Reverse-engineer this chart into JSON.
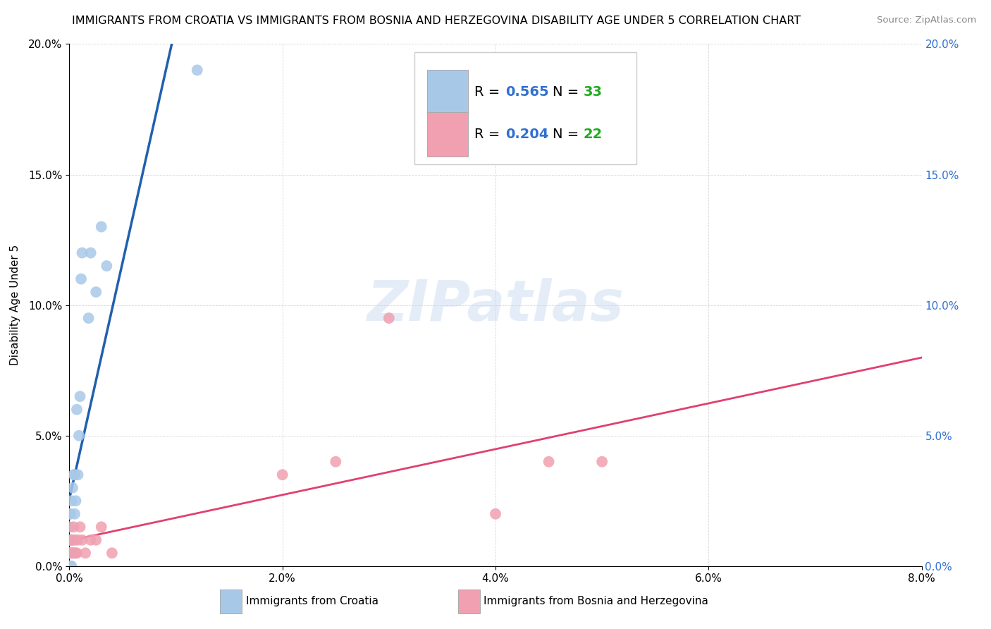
{
  "title": "IMMIGRANTS FROM CROATIA VS IMMIGRANTS FROM BOSNIA AND HERZEGOVINA DISABILITY AGE UNDER 5 CORRELATION CHART",
  "source": "Source: ZipAtlas.com",
  "ylabel": "Disability Age Under 5",
  "xlim": [
    0.0,
    0.08
  ],
  "ylim": [
    0.0,
    0.2
  ],
  "xticks": [
    0.0,
    0.02,
    0.04,
    0.06,
    0.08
  ],
  "yticks": [
    0.0,
    0.05,
    0.1,
    0.15,
    0.2
  ],
  "xticklabels": [
    "0.0%",
    "2.0%",
    "4.0%",
    "6.0%",
    "8.0%"
  ],
  "yticklabels_left": [
    "0.0%",
    "5.0%",
    "10.0%",
    "15.0%",
    "20.0%"
  ],
  "yticklabels_right": [
    "0.0%",
    "5.0%",
    "10.0%",
    "15.0%",
    "20.0%"
  ],
  "croatia_R": "0.565",
  "croatia_N": "33",
  "bosnia_R": "0.204",
  "bosnia_N": "22",
  "croatia_color": "#a8c8e8",
  "croatia_line_color": "#2060b0",
  "croatia_dash_color": "#6090c0",
  "bosnia_color": "#f0a0b0",
  "bosnia_line_color": "#e04070",
  "legend_R_color": "#3070d0",
  "legend_N_color": "#20aa20",
  "watermark_text": "ZIPatlas",
  "watermark_color": "#c5d8ee",
  "bottom_label1": "Immigrants from Croatia",
  "bottom_label2": "Immigrants from Bosnia and Herzegovina",
  "croatia_x": [
    0.0,
    0.0,
    0.0,
    0.0,
    0.0,
    0.0001,
    0.0001,
    0.0001,
    0.0001,
    0.0002,
    0.0002,
    0.0002,
    0.0002,
    0.0003,
    0.0003,
    0.0003,
    0.0004,
    0.0004,
    0.0005,
    0.0005,
    0.0006,
    0.0007,
    0.0008,
    0.0009,
    0.001,
    0.0011,
    0.0012,
    0.0018,
    0.002,
    0.0025,
    0.003,
    0.0035,
    0.012
  ],
  "croatia_y": [
    0.0,
    0.005,
    0.01,
    0.015,
    0.02,
    0.0,
    0.005,
    0.01,
    0.02,
    0.0,
    0.005,
    0.01,
    0.025,
    0.005,
    0.01,
    0.03,
    0.005,
    0.035,
    0.02,
    0.035,
    0.025,
    0.06,
    0.035,
    0.05,
    0.065,
    0.11,
    0.12,
    0.095,
    0.12,
    0.105,
    0.13,
    0.115,
    0.19
  ],
  "bosnia_x": [
    0.0,
    0.0001,
    0.0002,
    0.0003,
    0.0004,
    0.0005,
    0.0006,
    0.0007,
    0.0008,
    0.001,
    0.0012,
    0.0015,
    0.002,
    0.0025,
    0.003,
    0.004,
    0.02,
    0.025,
    0.03,
    0.04,
    0.045,
    0.05
  ],
  "bosnia_y": [
    0.005,
    0.01,
    0.01,
    0.005,
    0.015,
    0.01,
    0.005,
    0.005,
    0.01,
    0.015,
    0.01,
    0.005,
    0.01,
    0.01,
    0.015,
    0.005,
    0.035,
    0.04,
    0.095,
    0.02,
    0.04,
    0.04
  ],
  "title_fontsize": 11.5,
  "tick_fontsize": 11,
  "ylabel_fontsize": 11,
  "legend_fontsize": 14,
  "source_fontsize": 9.5
}
